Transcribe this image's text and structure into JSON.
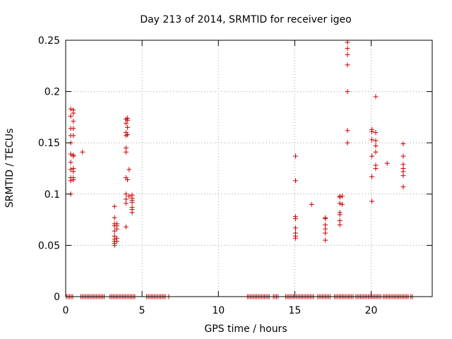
{
  "chart_data": {
    "type": "scatter",
    "title": "Day 213 of 2014, SRMTID for receiver igeo",
    "xlabel": "GPS time / hours",
    "ylabel": "SRMTID / TECUs",
    "xlim": [
      0,
      24
    ],
    "ylim": [
      0,
      0.25
    ],
    "xticks": [
      0,
      5,
      10,
      15,
      20
    ],
    "xtick_labels": [
      "0",
      "5",
      "10",
      "15",
      "20"
    ],
    "yticks": [
      0,
      0.05,
      0.1,
      0.15,
      0.2,
      0.25
    ],
    "ytick_labels": [
      "0",
      "0.05",
      "0.1",
      "0.15",
      "0.2",
      "0.25"
    ],
    "grid": true,
    "marker": "+",
    "color": "#cc0000",
    "series": [
      {
        "name": "SRMTID",
        "points": [
          [
            0.33,
            0.183
          ],
          [
            0.33,
            0.176
          ],
          [
            0.33,
            0.164
          ],
          [
            0.33,
            0.157
          ],
          [
            0.33,
            0.15
          ],
          [
            0.33,
            0.139
          ],
          [
            0.33,
            0.131
          ],
          [
            0.33,
            0.124
          ],
          [
            0.33,
            0.116
          ],
          [
            0.33,
            0.113
          ],
          [
            0.33,
            0.1
          ],
          [
            0.5,
            0.182
          ],
          [
            0.5,
            0.179
          ],
          [
            0.5,
            0.171
          ],
          [
            0.5,
            0.164
          ],
          [
            0.5,
            0.157
          ],
          [
            0.5,
            0.138
          ],
          [
            0.5,
            0.137
          ],
          [
            0.5,
            0.125
          ],
          [
            0.5,
            0.122
          ],
          [
            0.5,
            0.116
          ],
          [
            0.5,
            0.114
          ],
          [
            1.1,
            0.141
          ],
          [
            3.2,
            0.088
          ],
          [
            3.2,
            0.077
          ],
          [
            3.2,
            0.071
          ],
          [
            3.2,
            0.069
          ],
          [
            3.2,
            0.064
          ],
          [
            3.2,
            0.059
          ],
          [
            3.2,
            0.056
          ],
          [
            3.2,
            0.054
          ],
          [
            3.2,
            0.052
          ],
          [
            3.2,
            0.05
          ],
          [
            3.35,
            0.071
          ],
          [
            3.35,
            0.069
          ],
          [
            3.35,
            0.066
          ],
          [
            3.35,
            0.057
          ],
          [
            3.35,
            0.054
          ],
          [
            3.95,
            0.173
          ],
          [
            3.95,
            0.169
          ],
          [
            3.95,
            0.16
          ],
          [
            3.95,
            0.157
          ],
          [
            3.95,
            0.145
          ],
          [
            3.95,
            0.141
          ],
          [
            3.95,
            0.116
          ],
          [
            3.95,
            0.1
          ],
          [
            3.95,
            0.095
          ],
          [
            3.95,
            0.091
          ],
          [
            3.95,
            0.068
          ],
          [
            4.05,
            0.174
          ],
          [
            4.05,
            0.172
          ],
          [
            4.05,
            0.165
          ],
          [
            4.05,
            0.158
          ],
          [
            4.05,
            0.114
          ],
          [
            4.15,
            0.124
          ],
          [
            4.15,
            0.098
          ],
          [
            4.35,
            0.099
          ],
          [
            4.35,
            0.096
          ],
          [
            4.35,
            0.094
          ],
          [
            4.35,
            0.092
          ],
          [
            4.35,
            0.087
          ],
          [
            4.35,
            0.085
          ],
          [
            4.35,
            0.082
          ],
          [
            15.05,
            0.137
          ],
          [
            15.05,
            0.113
          ],
          [
            15.05,
            0.078
          ],
          [
            15.05,
            0.076
          ],
          [
            15.05,
            0.067
          ],
          [
            15.05,
            0.062
          ],
          [
            15.05,
            0.059
          ],
          [
            15.05,
            0.057
          ],
          [
            16.1,
            0.09
          ],
          [
            17.0,
            0.077
          ],
          [
            17.0,
            0.076
          ],
          [
            17.0,
            0.07
          ],
          [
            17.0,
            0.066
          ],
          [
            17.0,
            0.062
          ],
          [
            17.0,
            0.055
          ],
          [
            17.95,
            0.098
          ],
          [
            17.95,
            0.097
          ],
          [
            17.95,
            0.091
          ],
          [
            17.95,
            0.082
          ],
          [
            17.95,
            0.08
          ],
          [
            17.95,
            0.074
          ],
          [
            17.95,
            0.07
          ],
          [
            18.1,
            0.098
          ],
          [
            18.1,
            0.09
          ],
          [
            18.45,
            0.248
          ],
          [
            18.45,
            0.242
          ],
          [
            18.45,
            0.236
          ],
          [
            18.45,
            0.226
          ],
          [
            18.45,
            0.2
          ],
          [
            18.45,
            0.162
          ],
          [
            18.45,
            0.15
          ],
          [
            20.05,
            0.163
          ],
          [
            20.05,
            0.161
          ],
          [
            20.05,
            0.153
          ],
          [
            20.05,
            0.137
          ],
          [
            20.05,
            0.117
          ],
          [
            20.05,
            0.093
          ],
          [
            20.3,
            0.195
          ],
          [
            20.3,
            0.16
          ],
          [
            20.3,
            0.152
          ],
          [
            20.3,
            0.147
          ],
          [
            20.3,
            0.141
          ],
          [
            20.3,
            0.128
          ],
          [
            20.3,
            0.125
          ],
          [
            21.05,
            0.13
          ],
          [
            22.1,
            0.149
          ],
          [
            22.1,
            0.137
          ],
          [
            22.1,
            0.129
          ],
          [
            22.1,
            0.125
          ],
          [
            22.1,
            0.122
          ],
          [
            22.1,
            0.118
          ],
          [
            22.1,
            0.107
          ]
        ]
      }
    ],
    "zero_segments": [
      [
        0.05,
        0.55
      ],
      [
        1.0,
        2.6
      ],
      [
        2.9,
        4.6
      ],
      [
        5.3,
        6.6
      ],
      [
        6.75,
        6.8
      ],
      [
        11.9,
        13.4
      ],
      [
        13.6,
        14.0
      ],
      [
        14.4,
        16.3
      ],
      [
        16.5,
        17.4
      ],
      [
        17.6,
        18.9
      ],
      [
        19.0,
        20.7
      ],
      [
        20.8,
        22.5
      ],
      [
        22.6,
        22.8
      ]
    ]
  }
}
